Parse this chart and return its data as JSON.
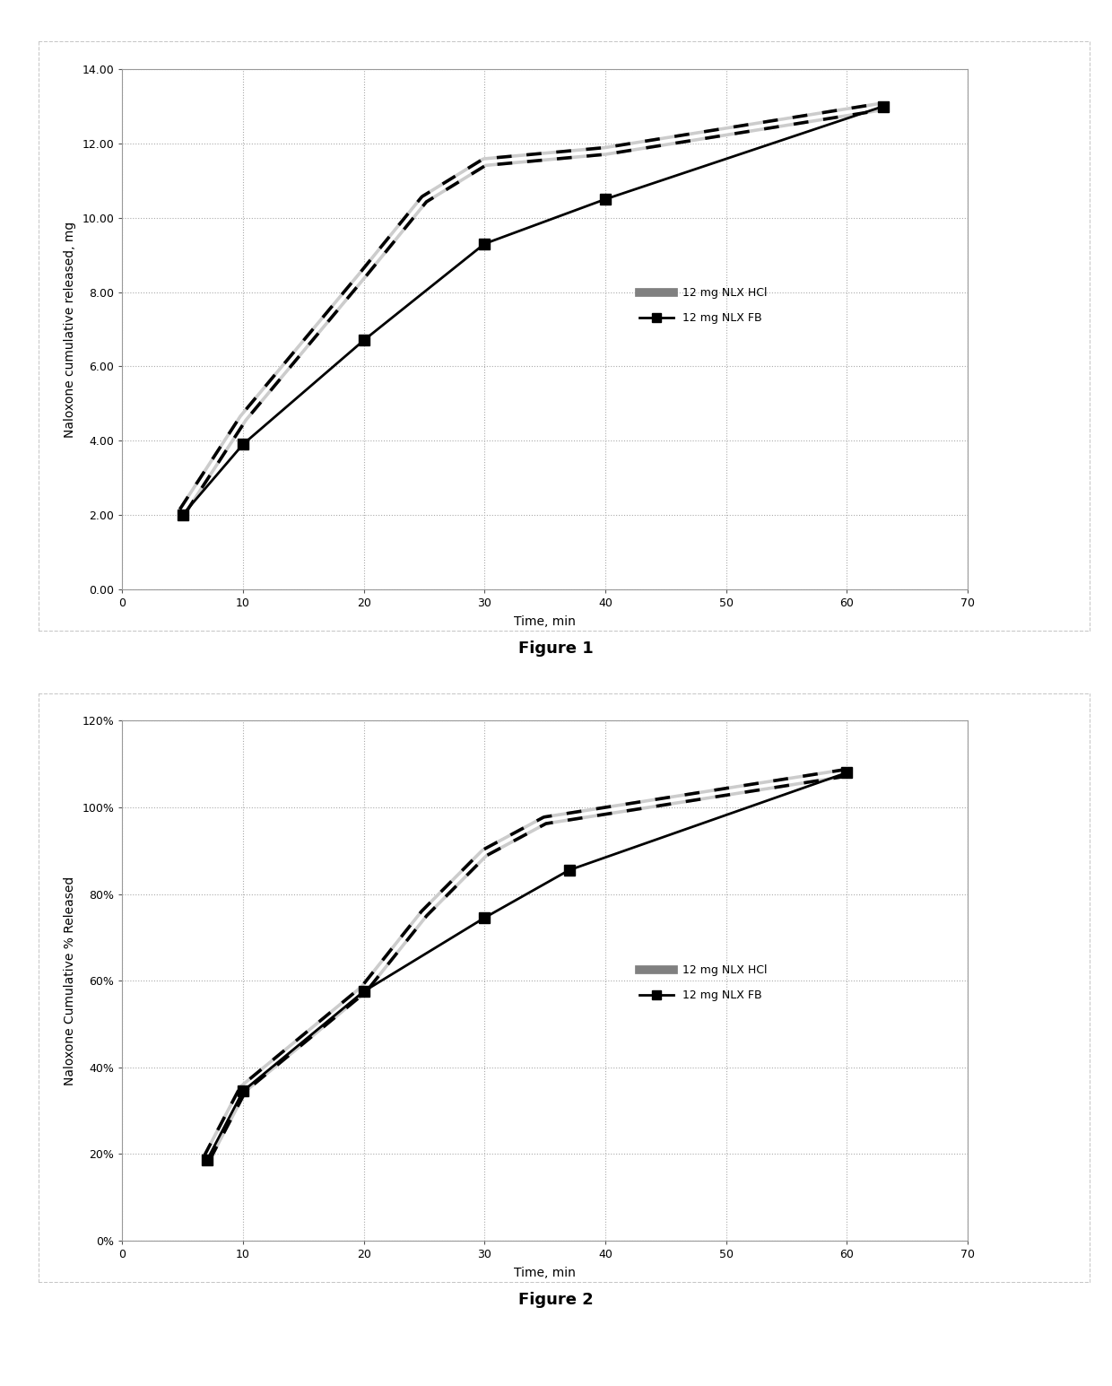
{
  "fig1": {
    "title": "Figure 1",
    "xlabel": "Time, min",
    "ylabel": "Naloxone cumulative released, mg",
    "xlim": [
      0,
      70
    ],
    "ylim": [
      0,
      14.0
    ],
    "yticks": [
      0.0,
      2.0,
      4.0,
      6.0,
      8.0,
      10.0,
      12.0,
      14.0
    ],
    "xticks": [
      0,
      10,
      20,
      30,
      40,
      50,
      60,
      70
    ],
    "hcl_x": [
      5,
      10,
      20,
      25,
      30,
      40,
      63
    ],
    "hcl_y": [
      2.1,
      4.6,
      8.5,
      10.5,
      11.5,
      11.8,
      13.0
    ],
    "fb_x": [
      5,
      10,
      20,
      30,
      40,
      63
    ],
    "fb_y": [
      2.0,
      3.9,
      6.7,
      9.3,
      10.5,
      13.0
    ],
    "legend_hcl": "12 mg NLX HCl",
    "legend_fb": "12 mg NLX FB"
  },
  "fig2": {
    "title": "Figure 2",
    "xlabel": "Time, min",
    "ylabel": "Naloxone Cumulative % Released",
    "xlim": [
      0,
      70
    ],
    "ylim": [
      0,
      1.2
    ],
    "yticks": [
      0.0,
      0.2,
      0.4,
      0.6,
      0.8,
      1.0,
      1.2
    ],
    "xticks": [
      0,
      10,
      20,
      30,
      40,
      50,
      60,
      70
    ],
    "hcl_x": [
      7,
      10,
      20,
      25,
      30,
      35,
      60
    ],
    "hcl_y": [
      0.19,
      0.35,
      0.58,
      0.755,
      0.895,
      0.97,
      1.08
    ],
    "fb_x": [
      7,
      10,
      20,
      30,
      37,
      60
    ],
    "fb_y": [
      0.185,
      0.345,
      0.575,
      0.745,
      0.855,
      1.08
    ],
    "legend_hcl": "12 mg NLX HCl",
    "legend_fb": "12 mg NLX FB"
  },
  "bg_color": "#ffffff",
  "plot_bg": "#ffffff",
  "grid_color": "#aaaaaa",
  "border_color": "#999999",
  "outer_border_color": "#bbbbbb",
  "title_fontsize": 13,
  "axis_label_fontsize": 10,
  "tick_fontsize": 9,
  "legend_fontsize": 9
}
